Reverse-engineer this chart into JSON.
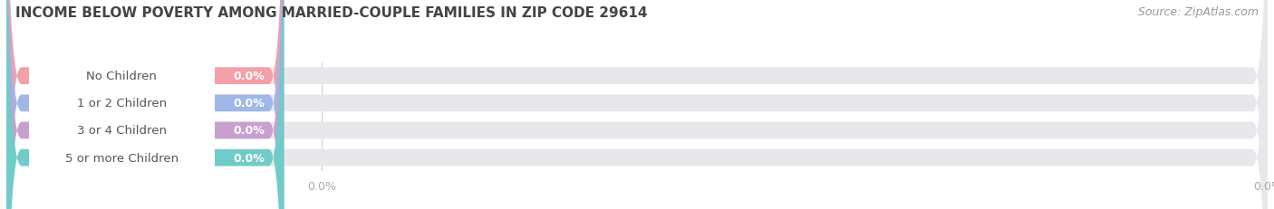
{
  "title": "INCOME BELOW POVERTY AMONG MARRIED-COUPLE FAMILIES IN ZIP CODE 29614",
  "source": "Source: ZipAtlas.com",
  "categories": [
    "No Children",
    "1 or 2 Children",
    "3 or 4 Children",
    "5 or more Children"
  ],
  "values": [
    0.0,
    0.0,
    0.0,
    0.0
  ],
  "bar_colors": [
    "#f4a0a8",
    "#a0b8e8",
    "#c8a0d0",
    "#70ccc8"
  ],
  "bar_bg_color": "#e8e8ec",
  "bg_color": "#f5f5f5",
  "title_fontsize": 11,
  "source_fontsize": 9,
  "label_fontsize": 9.5,
  "value_fontsize": 9,
  "tick_fontsize": 9,
  "background_color": "#ffffff",
  "label_color": "#555555",
  "value_color": "#ffffff",
  "tick_color": "#aaaaaa"
}
